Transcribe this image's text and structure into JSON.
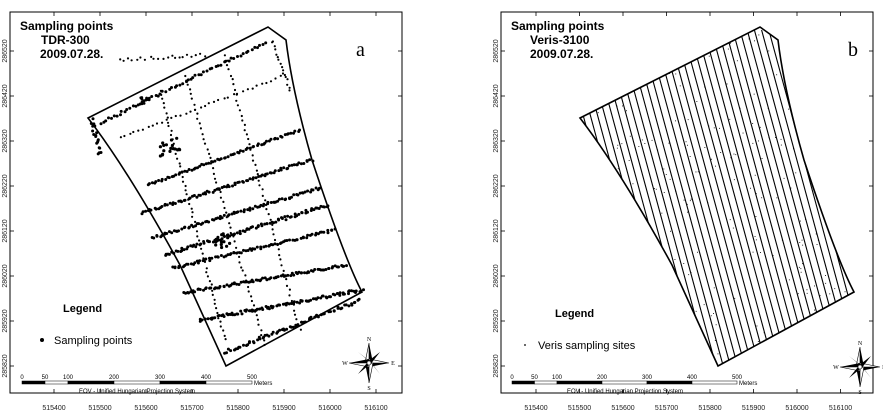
{
  "panels": [
    {
      "id": "a",
      "title_lines": [
        "Sampling points",
        "TDR-300",
        "2009.07.28."
      ],
      "letter": "a",
      "legend_title": "Legend",
      "legend_item": "Sampling points",
      "legend_symbol": "dot"
    },
    {
      "id": "b",
      "title_lines": [
        "Sampling points",
        "Veris-3100",
        "2009.07.28."
      ],
      "letter": "b",
      "legend_title": "Legend",
      "legend_item": "Veris sampling sites",
      "legend_symbol": "small-dot"
    }
  ],
  "x_ticks": [
    "515400",
    "515500",
    "515600",
    "515700",
    "515800",
    "515900",
    "516000",
    "516100"
  ],
  "y_ticks": [
    "285820",
    "285920",
    "286020",
    "286120",
    "286220",
    "286320",
    "286420",
    "286520"
  ],
  "scale_bar": {
    "labels": [
      "0",
      "50",
      "100",
      "200",
      "300",
      "400",
      "500"
    ],
    "unit": "Meters",
    "caption": "EOV - Unified Hungarian Projection System"
  },
  "compass": {
    "n": "N",
    "s": "S",
    "e": "E",
    "w": "W"
  },
  "colors": {
    "frame": "#000000",
    "background": "#ffffff",
    "points": "#000000"
  }
}
